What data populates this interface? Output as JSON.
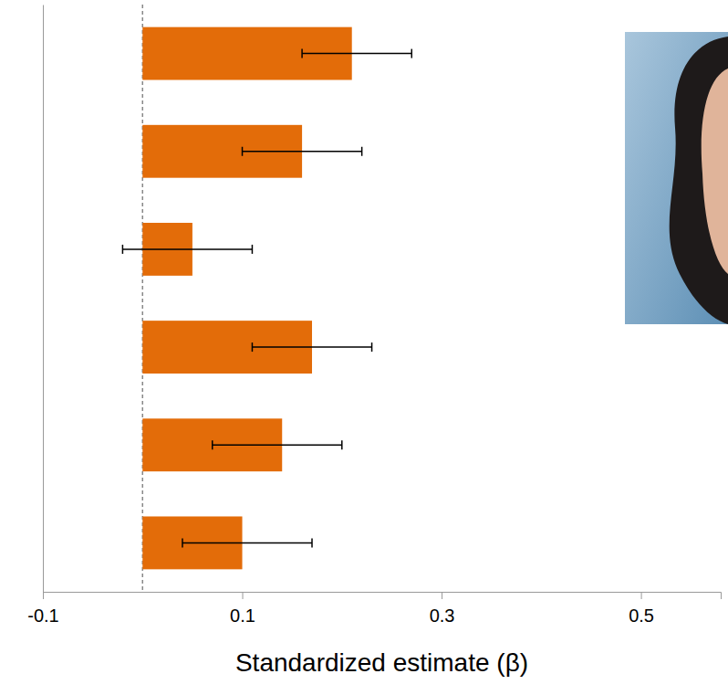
{
  "chart_data": {
    "type": "bar",
    "orientation": "horizontal",
    "categories": [
      null,
      null,
      null,
      null,
      null,
      null
    ],
    "values": [
      0.21,
      0.16,
      0.05,
      0.17,
      0.14,
      0.1
    ],
    "ci_low": [
      0.16,
      0.1,
      -0.02,
      0.11,
      0.07,
      0.04
    ],
    "ci_high": [
      0.27,
      0.22,
      0.11,
      0.23,
      0.2,
      0.17
    ],
    "baseline": 0,
    "color": "#e36c09",
    "xlim": [
      -0.1,
      0.58
    ],
    "xticks": [
      -0.1,
      0.1,
      0.3,
      0.5
    ],
    "xlabel": "Standardized estimate (β)",
    "grid": false
  }
}
